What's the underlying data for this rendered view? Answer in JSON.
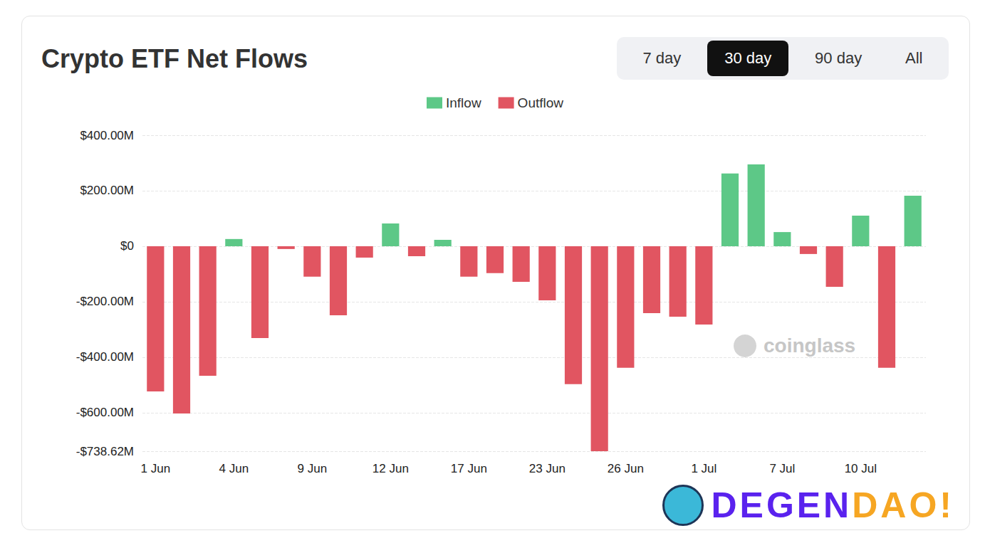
{
  "chart_data": {
    "type": "bar",
    "title": "Crypto ETF Net Flows",
    "categories": [
      "1 Jun",
      null,
      null,
      "4 Jun",
      null,
      null,
      "9 Jun",
      null,
      null,
      "12 Jun",
      null,
      null,
      "17 Jun",
      null,
      null,
      "23 Jun",
      null,
      null,
      "26 Jun",
      null,
      null,
      "1 Jul",
      null,
      null,
      "7 Jul",
      null,
      null,
      "10 Jul",
      null,
      null
    ],
    "series": [
      {
        "name": "Inflow",
        "color": "#5dc887",
        "values": [
          null,
          null,
          null,
          26,
          null,
          null,
          null,
          null,
          null,
          82,
          null,
          23,
          null,
          null,
          null,
          null,
          null,
          null,
          null,
          null,
          null,
          null,
          262,
          295,
          51,
          null,
          null,
          110,
          null,
          182
        ]
      },
      {
        "name": "Outflow",
        "color": "#e15561",
        "values": [
          -523,
          -603,
          -467,
          null,
          -331,
          -10,
          -110,
          -249,
          -41,
          null,
          -36,
          null,
          -110,
          -97,
          -128,
          -195,
          -497,
          -738.62,
          -438,
          -241,
          -254,
          -282,
          null,
          null,
          null,
          -28,
          -146,
          null,
          -438,
          null
        ]
      }
    ],
    "ylim": [
      -738.62,
      400
    ],
    "yticks": [
      {
        "value": -738.62,
        "label": "-$738.62M"
      },
      {
        "value": -600,
        "label": "-$600.00M"
      },
      {
        "value": -400,
        "label": "-$400.00M"
      },
      {
        "value": -200,
        "label": "-$200.00M"
      },
      {
        "value": 0,
        "label": "$0"
      },
      {
        "value": 200,
        "label": "$200.00M"
      },
      {
        "value": 400,
        "label": "$400.00M"
      }
    ],
    "grid": true,
    "legend": "top"
  },
  "tabs": [
    "7 day",
    "30 day",
    "90 day",
    "All"
  ],
  "selected_tab": "30 day",
  "watermark": "coinglass",
  "brand": [
    "DEGEN",
    "DAO!"
  ]
}
